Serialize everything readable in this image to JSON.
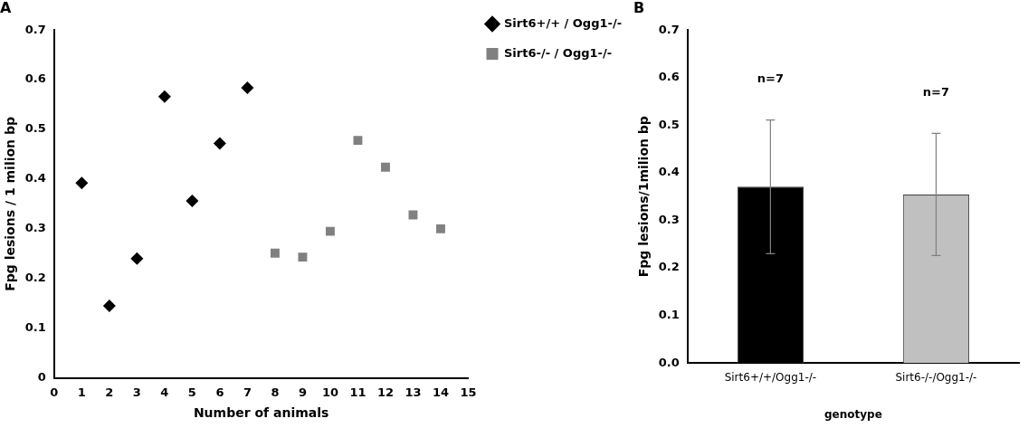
{
  "chart_data": [
    {
      "type": "scatter",
      "title": "A",
      "xlabel": "Number of animals",
      "ylabel": "Fpg lesions / 1 milion bp",
      "xlim": [
        0,
        15
      ],
      "xticks": [
        0,
        1,
        2,
        3,
        4,
        5,
        6,
        7,
        8,
        9,
        10,
        11,
        12,
        13,
        14,
        15
      ],
      "ylim": [
        0,
        0.7
      ],
      "yticks": [
        0,
        0.1,
        0.2,
        0.3,
        0.4,
        0.5,
        0.6,
        0.7
      ],
      "grid": false,
      "legend": "top right",
      "series": [
        {
          "name": "Sirt6+/+ / Ogg1-/-",
          "color": "#000000",
          "marker": "diamond",
          "x": [
            1,
            2,
            3,
            4,
            5,
            6,
            7
          ],
          "values": [
            0.392,
            0.145,
            0.24,
            0.566,
            0.356,
            0.472,
            0.584
          ]
        },
        {
          "name": "Sirt6-/- / Ogg1-/-",
          "color": "#808080",
          "marker": "square",
          "x": [
            8,
            9,
            10,
            11,
            12,
            13,
            14
          ],
          "values": [
            0.251,
            0.243,
            0.295,
            0.478,
            0.424,
            0.328,
            0.3
          ]
        }
      ]
    },
    {
      "type": "bar",
      "title": "B",
      "xlabel": "genotype",
      "ylabel": "Fpg lesions/1milion bp",
      "categories": [
        "Sirt6+/+/Ogg1-/-",
        "Sirt6-/-/Ogg1-/-"
      ],
      "values": [
        0.371,
        0.354
      ],
      "colors": [
        "#000000",
        "#c0c0c0"
      ],
      "errors": [
        [
          0.23,
          0.511
        ],
        [
          0.226,
          0.483
        ]
      ],
      "ylim": [
        0,
        0.7
      ],
      "yticks": [
        {
          "value": 0,
          "label": "0.0"
        },
        0.1,
        0.2,
        0.3,
        0.4,
        0.5,
        0.6,
        0.7
      ],
      "grid": false,
      "legend": false,
      "annotations": [
        "n=7",
        "n=7"
      ]
    }
  ]
}
